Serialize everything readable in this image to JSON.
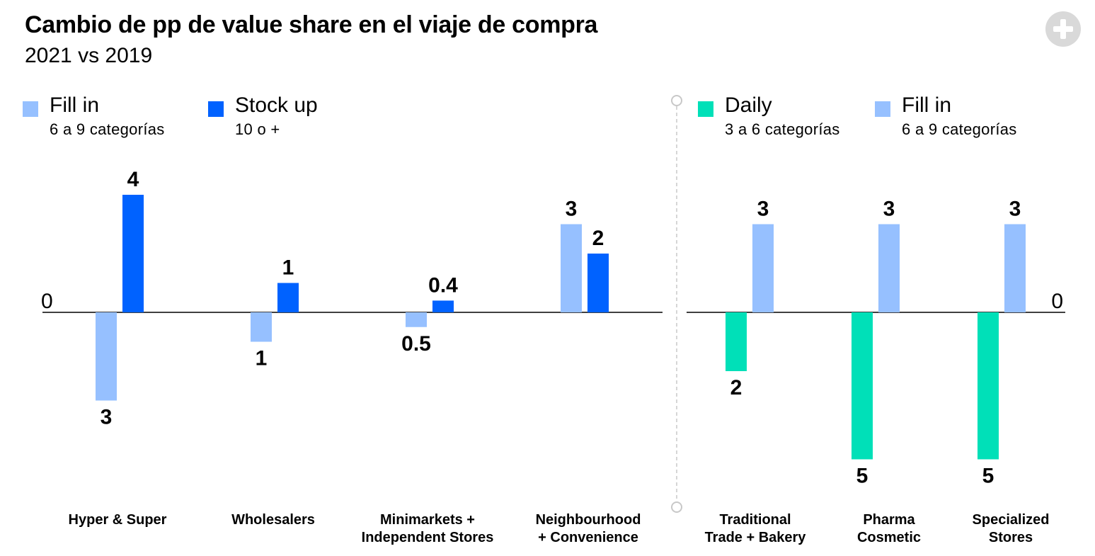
{
  "header": {
    "title": "Cambio de pp de value share en el viaje de compra",
    "subtitle": "2021 vs 2019"
  },
  "legend_left": [
    {
      "label": "Fill in",
      "sub": "6 a 9 categorías",
      "color": "#96c0ff"
    },
    {
      "label": "Stock up",
      "sub": "10 o +",
      "color": "#0062ff"
    }
  ],
  "legend_right": [
    {
      "label": "Daily",
      "sub": "3 a 6 categorías",
      "color": "#00e0b8"
    },
    {
      "label": "Fill in",
      "sub": "6 a 9 categorías",
      "color": "#96c0ff"
    }
  ],
  "chart_data": [
    {
      "type": "bar",
      "zero_label": "0",
      "categories": [
        [
          "Hyper & Super"
        ],
        [
          "Wholesalers"
        ],
        [
          "Minimarkets +",
          "Independent Stores"
        ],
        [
          "Neighbourhood",
          "+ Convenience"
        ]
      ],
      "series": [
        {
          "name": "Fill in",
          "color": "#96c0ff",
          "values": [
            -3,
            -1,
            -0.5,
            3
          ],
          "labels": [
            "3",
            "1",
            "0.5",
            "3"
          ]
        },
        {
          "name": "Stock up",
          "color": "#0062ff",
          "values": [
            4,
            1,
            0.4,
            2
          ],
          "labels": [
            "4",
            "1",
            "0.4",
            "2"
          ]
        }
      ]
    },
    {
      "type": "bar",
      "zero_label": "0",
      "categories": [
        [
          "Traditional",
          "Trade + Bakery"
        ],
        [
          "Pharma",
          "Cosmetic"
        ],
        [
          "Specialized",
          "Stores"
        ]
      ],
      "series": [
        {
          "name": "Daily",
          "color": "#00e0b8",
          "values": [
            -2,
            -5,
            -5
          ],
          "labels": [
            "2",
            "5",
            "5"
          ]
        },
        {
          "name": "Fill in",
          "color": "#96c0ff",
          "values": [
            3,
            3,
            3
          ],
          "labels": [
            "3",
            "3",
            "3"
          ]
        }
      ]
    }
  ]
}
